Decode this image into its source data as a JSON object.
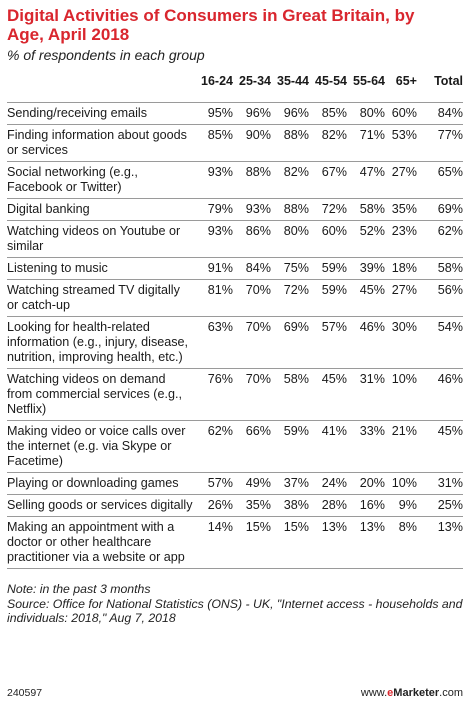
{
  "title": "Digital Activities of Consumers in Great Britain, by Age, April 2018",
  "subtitle": "% of respondents in each group",
  "columns": [
    "16-24",
    "25-34",
    "35-44",
    "45-54",
    "55-64",
    "65+",
    "Total"
  ],
  "chart_data": {
    "type": "table",
    "title": "Digital Activities of Consumers in Great Britain, by Age, April 2018",
    "subtitle": "% of respondents in each group",
    "columns": [
      "16-24",
      "25-34",
      "35-44",
      "45-54",
      "55-64",
      "65+",
      "Total"
    ],
    "rows": [
      {
        "label": "Sending/receiving emails",
        "values": [
          "95%",
          "96%",
          "96%",
          "85%",
          "80%",
          "60%",
          "84%"
        ]
      },
      {
        "label": "Finding information about goods or services",
        "values": [
          "85%",
          "90%",
          "88%",
          "82%",
          "71%",
          "53%",
          "77%"
        ]
      },
      {
        "label": "Social networking (e.g., Facebook or Twitter)",
        "values": [
          "93%",
          "88%",
          "82%",
          "67%",
          "47%",
          "27%",
          "65%"
        ]
      },
      {
        "label": "Digital banking",
        "values": [
          "79%",
          "93%",
          "88%",
          "72%",
          "58%",
          "35%",
          "69%"
        ]
      },
      {
        "label": "Watching videos on Youtube or similar",
        "values": [
          "93%",
          "86%",
          "80%",
          "60%",
          "52%",
          "23%",
          "62%"
        ]
      },
      {
        "label": "Listening to music",
        "values": [
          "91%",
          "84%",
          "75%",
          "59%",
          "39%",
          "18%",
          "58%"
        ]
      },
      {
        "label": "Watching streamed TV digitally or catch-up",
        "values": [
          "81%",
          "70%",
          "72%",
          "59%",
          "45%",
          "27%",
          "56%"
        ]
      },
      {
        "label": "Looking for health-related information (e.g., injury, disease, nutrition, improving health, etc.)",
        "values": [
          "63%",
          "70%",
          "69%",
          "57%",
          "46%",
          "30%",
          "54%"
        ]
      },
      {
        "label": "Watching videos on demand from commercial services (e.g., Netflix)",
        "values": [
          "76%",
          "70%",
          "58%",
          "45%",
          "31%",
          "10%",
          "46%"
        ]
      },
      {
        "label": "Making video or voice calls over the internet (e.g. via Skype or Facetime)",
        "values": [
          "62%",
          "66%",
          "59%",
          "41%",
          "33%",
          "21%",
          "45%"
        ]
      },
      {
        "label": "Playing or downloading games",
        "values": [
          "57%",
          "49%",
          "37%",
          "24%",
          "20%",
          "10%",
          "31%"
        ]
      },
      {
        "label": "Selling goods or services digitally",
        "values": [
          "26%",
          "35%",
          "38%",
          "28%",
          "16%",
          "9%",
          "25%"
        ]
      },
      {
        "label": "Making an appointment with a doctor or other healthcare practitioner via a website or app",
        "values": [
          "14%",
          "15%",
          "15%",
          "13%",
          "13%",
          "8%",
          "13%"
        ]
      }
    ]
  },
  "note": "Note: in the past 3 months",
  "source": "Source: Office for National Statistics (ONS) - UK, \"Internet access - households and individuals: 2018,\" Aug 7, 2018",
  "footer": {
    "id": "240597",
    "brand_prefix": "www.",
    "brand_e": "e",
    "brand_name": "Marketer",
    "brand_suffix": ".com"
  }
}
